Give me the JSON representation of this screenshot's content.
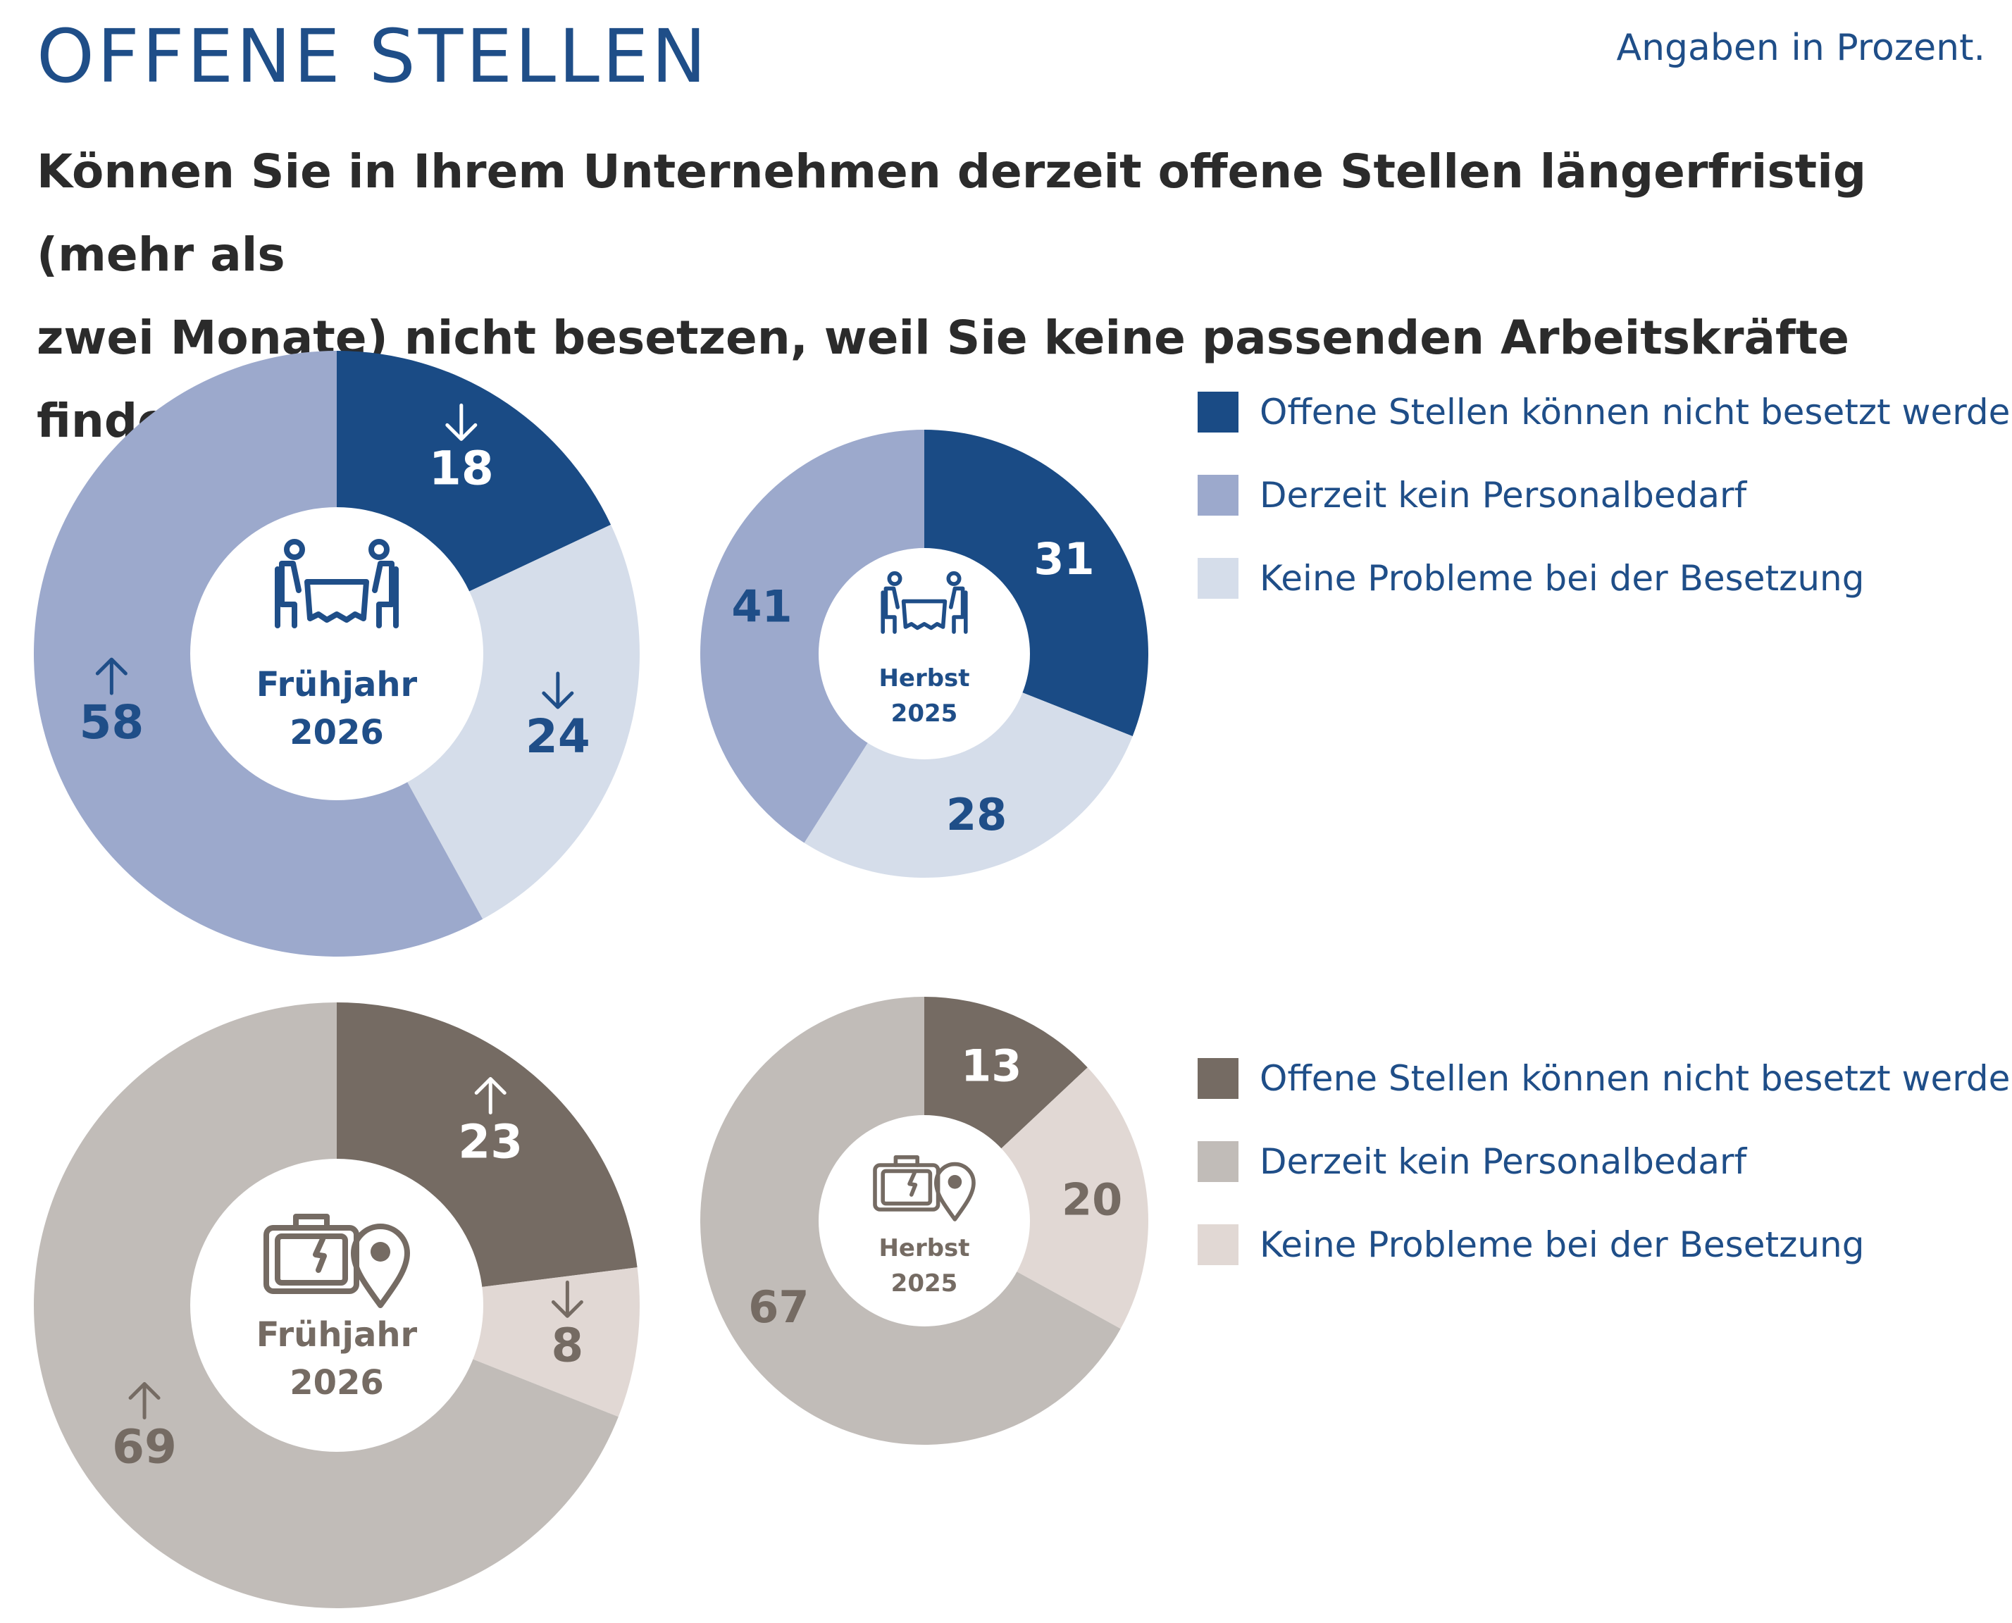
{
  "header": {
    "title": "OFFENE STELLEN",
    "unit_note": "Angaben in Prozent.",
    "question_line1": "Können Sie in Ihrem Unternehmen derzeit offene Stellen längerfristig (mehr als",
    "question_line2": "zwei Monate) nicht besetzen, weil Sie keine passenden Arbeitskräfte finden?"
  },
  "legend_top": [
    {
      "label": "Offene Stellen können nicht besetzt werden",
      "color": "#1a4b85"
    },
    {
      "label": "Derzeit kein Personalbedarf",
      "color": "#9ca9cc"
    },
    {
      "label": "Keine Probleme bei der Besetzung",
      "color": "#d5ddea"
    }
  ],
  "legend_bottom": [
    {
      "label": "Offene Stellen können nicht besetzt werden",
      "color": "#756b63"
    },
    {
      "label": "Derzeit kein Personalbedarf",
      "color": "#c1bcb8"
    },
    {
      "label": "Keine Probleme bei der Besetzung",
      "color": "#e1d8d4"
    }
  ],
  "chart_data": [
    {
      "type": "pie",
      "group": "top",
      "icon": "restaurant-icon",
      "center_line1": "Frühjahr",
      "center_line2": "2026",
      "text_color": "#1f4e88",
      "categories": [
        "Offene Stellen können nicht besetzt werden",
        "Keine Probleme bei der Besetzung",
        "Derzeit kein Personalbedarf"
      ],
      "values": [
        18,
        24,
        58
      ],
      "labels": [
        "18",
        "24",
        "58"
      ],
      "trend": [
        "down",
        "down",
        "up"
      ],
      "colors": [
        "#1a4b85",
        "#d5ddea",
        "#9ca9cc"
      ]
    },
    {
      "type": "pie",
      "group": "top",
      "icon": "restaurant-icon",
      "center_line1": "Herbst",
      "center_line2": "2025",
      "text_color": "#1f4e88",
      "categories": [
        "Offene Stellen können nicht besetzt werden",
        "Keine Probleme bei der Besetzung",
        "Derzeit kein Personalbedarf"
      ],
      "values": [
        31,
        28,
        41
      ],
      "labels": [
        "31",
        "28",
        "41"
      ],
      "trend": [
        "",
        "",
        ""
      ],
      "colors": [
        "#1a4b85",
        "#d5ddea",
        "#9ca9cc"
      ]
    },
    {
      "type": "pie",
      "group": "bottom",
      "icon": "suitcase-location-icon",
      "center_line1": "Frühjahr",
      "center_line2": "2026",
      "text_color": "#756b63",
      "categories": [
        "Offene Stellen können nicht besetzt werden",
        "Keine Probleme bei der Besetzung",
        "Derzeit kein Personalbedarf"
      ],
      "values": [
        23,
        8,
        69
      ],
      "labels": [
        "23",
        "8",
        "69"
      ],
      "trend": [
        "up",
        "down",
        "up"
      ],
      "colors": [
        "#756b63",
        "#e1d8d4",
        "#c1bcb8"
      ]
    },
    {
      "type": "pie",
      "group": "bottom",
      "icon": "suitcase-location-icon",
      "center_line1": "Herbst",
      "center_line2": "2025",
      "text_color": "#756b63",
      "categories": [
        "Offene Stellen können nicht besetzt werden",
        "Keine Probleme bei der Besetzung",
        "Derzeit kein Personalbedarf"
      ],
      "values": [
        13,
        20,
        67
      ],
      "labels": [
        "13",
        "20",
        "67"
      ],
      "trend": [
        "",
        "",
        ""
      ],
      "colors": [
        "#756b63",
        "#e1d8d4",
        "#c1bcb8"
      ]
    }
  ]
}
